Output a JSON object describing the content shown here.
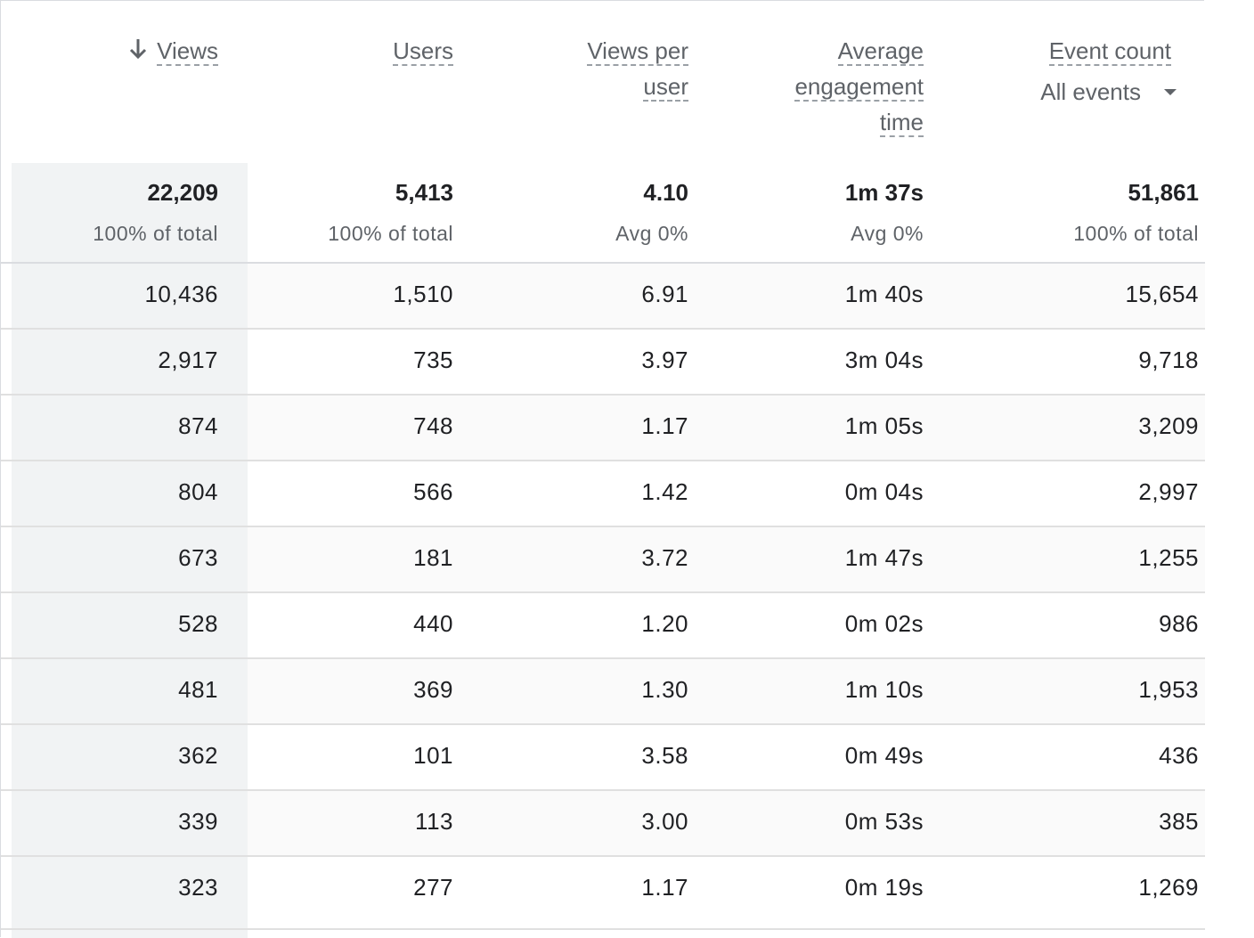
{
  "columns": {
    "views": {
      "label": "Views",
      "sorted": "descending",
      "total": "22,209",
      "total_sub": "100% of total"
    },
    "users": {
      "label": "Users",
      "total": "5,413",
      "total_sub": "100% of total"
    },
    "views_per_user": {
      "label_lines": [
        "Views per",
        "user"
      ],
      "total": "4.10",
      "total_sub": "Avg 0%"
    },
    "avg_engagement": {
      "label_lines": [
        "Average",
        "engagement",
        "time"
      ],
      "total": "1m 37s",
      "total_sub": "Avg 0%"
    },
    "event_count": {
      "label": "Event count",
      "filter_value": "All events",
      "total": "51,861",
      "total_sub": "100% of total"
    }
  },
  "rows": [
    [
      "10,436",
      "1,510",
      "6.91",
      "1m 40s",
      "15,654"
    ],
    [
      "2,917",
      "735",
      "3.97",
      "3m 04s",
      "9,718"
    ],
    [
      "874",
      "748",
      "1.17",
      "1m 05s",
      "3,209"
    ],
    [
      "804",
      "566",
      "1.42",
      "0m 04s",
      "2,997"
    ],
    [
      "673",
      "181",
      "3.72",
      "1m 47s",
      "1,255"
    ],
    [
      "528",
      "440",
      "1.20",
      "0m 02s",
      "986"
    ],
    [
      "481",
      "369",
      "1.30",
      "1m 10s",
      "1,953"
    ],
    [
      "362",
      "101",
      "3.58",
      "0m 49s",
      "436"
    ],
    [
      "339",
      "113",
      "3.00",
      "0m 53s",
      "385"
    ],
    [
      "323",
      "277",
      "1.17",
      "0m 19s",
      "1,269"
    ]
  ],
  "colors": {
    "sorted_column_bg": "#f1f3f4",
    "border": "#dadce0",
    "header_text": "#5f6368",
    "body_text": "#202124"
  },
  "icons": {
    "sort": "arrow-down-icon",
    "dropdown": "caret-down-icon"
  }
}
